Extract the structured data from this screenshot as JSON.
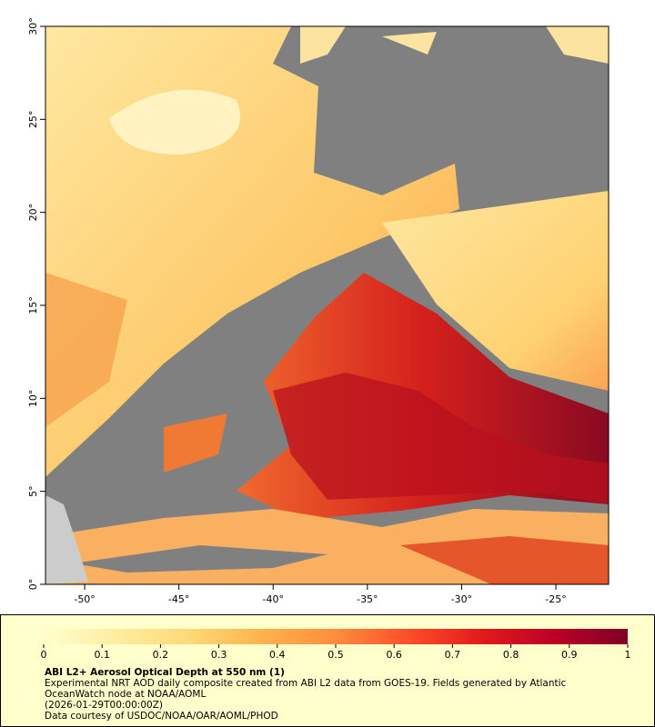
{
  "map": {
    "xlim": [
      -52.08,
      -22.2
    ],
    "ylim": [
      0,
      30
    ],
    "xticks": [
      {
        "value": -50,
        "label": "-50°"
      },
      {
        "value": -45,
        "label": "-45°"
      },
      {
        "value": -40,
        "label": "-40°"
      },
      {
        "value": -35,
        "label": "-35°"
      },
      {
        "value": -30,
        "label": "-30°"
      },
      {
        "value": -25,
        "label": "-25°"
      }
    ],
    "yticks": [
      {
        "value": 0,
        "label": "0°"
      },
      {
        "value": 5,
        "label": "5°"
      },
      {
        "value": 10,
        "label": "10°"
      },
      {
        "value": 15,
        "label": "15°"
      },
      {
        "value": 20,
        "label": "20°"
      },
      {
        "value": 25,
        "label": "25°"
      },
      {
        "value": 30,
        "label": "30°"
      }
    ]
  },
  "colorbar": {
    "lim": [
      0,
      1
    ],
    "ticks": [
      0,
      0.1,
      0.2,
      0.3,
      0.4,
      0.5,
      0.6,
      0.7,
      0.8,
      0.9,
      1
    ],
    "colors": [
      "#ffffcc",
      "#ffeda0",
      "#fed976",
      "#feb24c",
      "#fd8d3c",
      "#fc4e2a",
      "#e31a1c",
      "#bd0026",
      "#800026"
    ]
  },
  "legend": {
    "title": "ABI L2+ Aerosol Optical Depth at 550 nm (1)",
    "description": "Experimental NRT AOD daily composite created from ABI L2 data from GOES-19. Fields generated by Atlantic OceanWatch node at NOAA/AOML",
    "time": "(2026-01-29T00:00:00Z)",
    "credit": "Data courtesy of USDOC/NOAA/OAR/AOML/PHOD"
  }
}
